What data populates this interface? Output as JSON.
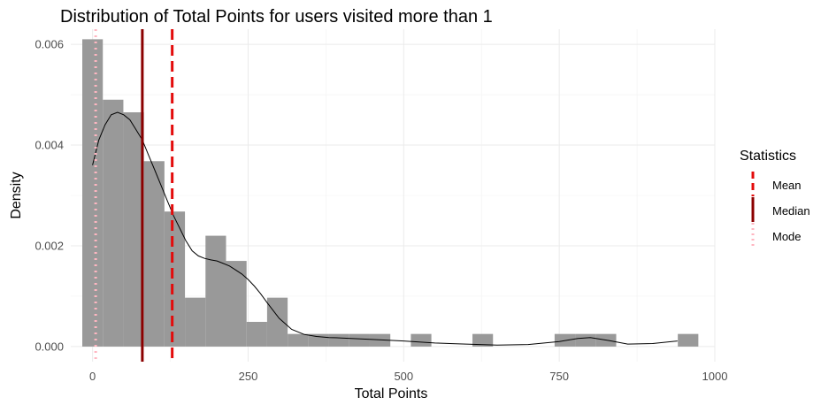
{
  "chart_data": {
    "type": "histogram",
    "title": "Distribution of Total Points for users visited more than 1",
    "xlabel": "Total Points",
    "ylabel": "Density",
    "xlim": [
      -35,
      1000
    ],
    "ylim": [
      -0.0003,
      0.0063
    ],
    "x_ticks": [
      0,
      250,
      500,
      750,
      1000
    ],
    "x_tick_labels": [
      "0",
      "250",
      "500",
      "750",
      "1000"
    ],
    "y_ticks": [
      0,
      0.002,
      0.004,
      0.006
    ],
    "y_tick_labels": [
      "0.000",
      "0.002",
      "0.004",
      "0.006"
    ],
    "grid": true,
    "bins": [
      {
        "x0": -16.5,
        "x1": 16.5,
        "density": 0.0061
      },
      {
        "x0": 16.5,
        "x1": 49.5,
        "density": 0.0049
      },
      {
        "x0": 49.5,
        "x1": 82.5,
        "density": 0.00465
      },
      {
        "x0": 82.5,
        "x1": 115.5,
        "density": 0.00368
      },
      {
        "x0": 115.5,
        "x1": 148.5,
        "density": 0.00268
      },
      {
        "x0": 148.5,
        "x1": 181.5,
        "density": 0.00097
      },
      {
        "x0": 181.5,
        "x1": 214.5,
        "density": 0.0022
      },
      {
        "x0": 214.5,
        "x1": 247.5,
        "density": 0.0017
      },
      {
        "x0": 247.5,
        "x1": 280.5,
        "density": 0.00049
      },
      {
        "x0": 280.5,
        "x1": 313.5,
        "density": 0.00097
      },
      {
        "x0": 313.5,
        "x1": 346.5,
        "density": 0.00025
      },
      {
        "x0": 346.5,
        "x1": 379.5,
        "density": 0.00025
      },
      {
        "x0": 379.5,
        "x1": 412.5,
        "density": 0.00025
      },
      {
        "x0": 412.5,
        "x1": 445.5,
        "density": 0.00025
      },
      {
        "x0": 445.5,
        "x1": 478.5,
        "density": 0.00025
      },
      {
        "x0": 511.5,
        "x1": 544.5,
        "density": 0.00025
      },
      {
        "x0": 610.5,
        "x1": 643.5,
        "density": 0.00025
      },
      {
        "x0": 742.5,
        "x1": 775.5,
        "density": 0.00025
      },
      {
        "x0": 775.5,
        "x1": 808.5,
        "density": 0.00025
      },
      {
        "x0": 808.5,
        "x1": 841.5,
        "density": 0.00025
      },
      {
        "x0": 940.5,
        "x1": 973.5,
        "density": 0.00025
      }
    ],
    "density_curve": {
      "x": [
        0,
        10,
        20,
        30,
        40,
        50,
        60,
        70,
        80,
        90,
        100,
        110,
        120,
        130,
        140,
        150,
        160,
        170,
        180,
        190,
        200,
        210,
        220,
        230,
        240,
        250,
        260,
        270,
        280,
        290,
        300,
        320,
        340,
        360,
        380,
        400,
        450,
        500,
        550,
        600,
        650,
        700,
        750,
        780,
        800,
        830,
        860,
        900,
        940
      ],
      "y": [
        0.0036,
        0.0041,
        0.0044,
        0.0046,
        0.00465,
        0.0046,
        0.0045,
        0.0043,
        0.0041,
        0.0038,
        0.0035,
        0.0032,
        0.0029,
        0.0026,
        0.00235,
        0.0021,
        0.0019,
        0.0018,
        0.00175,
        0.00172,
        0.0017,
        0.00165,
        0.0016,
        0.00152,
        0.00144,
        0.00133,
        0.0012,
        0.00105,
        0.00088,
        0.00072,
        0.00056,
        0.00034,
        0.00024,
        0.0002,
        0.00018,
        0.00017,
        0.00014,
        0.00011,
        7e-05,
        5e-05,
        3e-05,
        4e-05,
        0.0001,
        0.00016,
        0.00018,
        0.00012,
        5e-05,
        6e-05,
        0.00011
      ]
    },
    "fill_color": "#999999",
    "curve_color": "#000000",
    "statistics": [
      {
        "name": "Mean",
        "x": 128,
        "color": "#e30b0b",
        "style": "dashed"
      },
      {
        "name": "Median",
        "x": 80,
        "color": "#8b0000",
        "style": "solid"
      },
      {
        "name": "Mode",
        "x": 5,
        "color": "#ffb6c1",
        "style": "dotted"
      }
    ],
    "legend": {
      "title": "Statistics",
      "position": "right",
      "items": [
        "Mean",
        "Median",
        "Mode"
      ]
    }
  }
}
